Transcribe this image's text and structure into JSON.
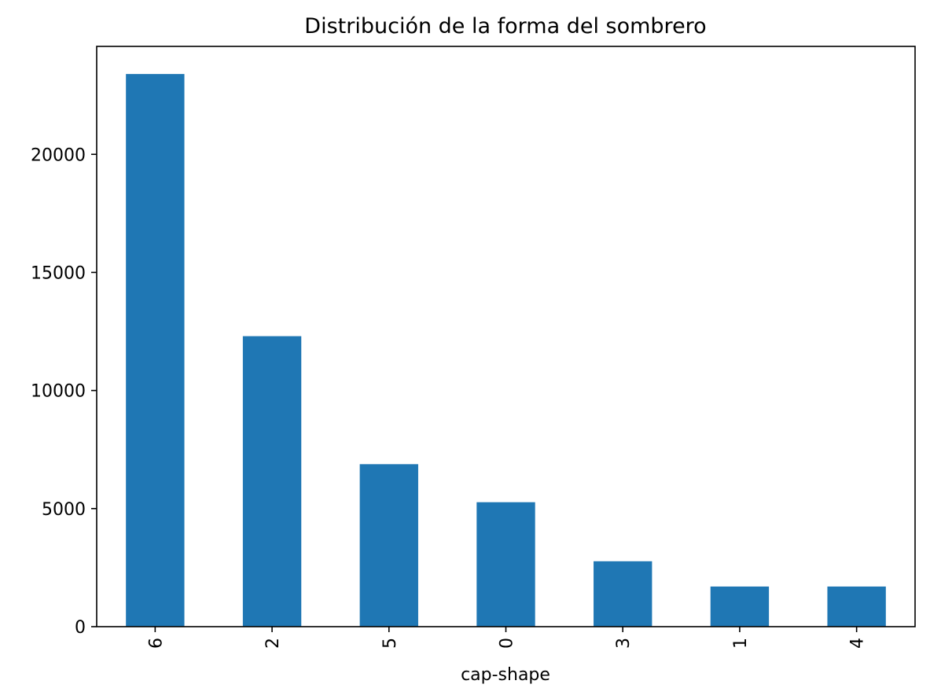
{
  "chart_data": {
    "type": "bar",
    "title": "Distribución de la forma del sombrero",
    "xlabel": "cap-shape",
    "ylabel": "",
    "categories": [
      "6",
      "2",
      "5",
      "0",
      "3",
      "1",
      "4"
    ],
    "values": [
      23400,
      12300,
      6880,
      5270,
      2770,
      1700,
      1700
    ],
    "ylim": [
      0,
      24570
    ],
    "yticks": [
      0,
      5000,
      10000,
      15000,
      20000
    ],
    "ytick_labels": [
      "0",
      "5000",
      "10000",
      "15000",
      "20000"
    ],
    "bar_color": "#1f77b4",
    "grid": false,
    "legend": "none"
  }
}
